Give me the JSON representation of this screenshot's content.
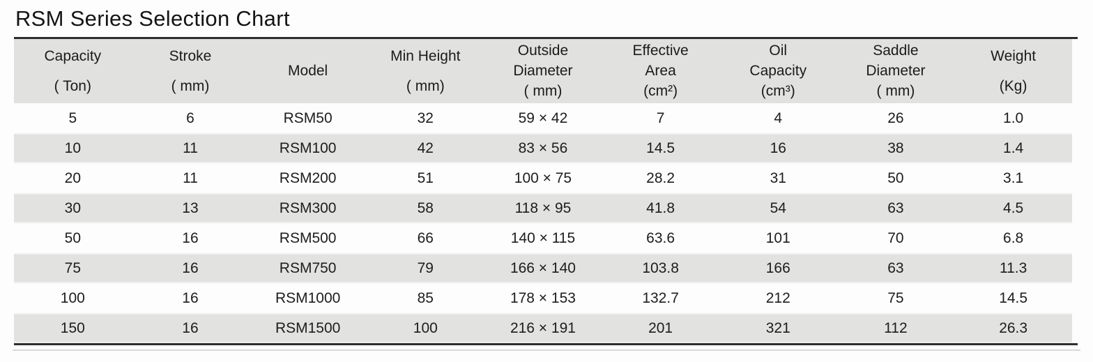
{
  "title": "RSM Series Selection Chart",
  "table": {
    "columns": [
      {
        "id": "capacity",
        "lines": [
          "Capacity",
          "( Ton)"
        ]
      },
      {
        "id": "stroke",
        "lines": [
          "Stroke",
          "( mm)"
        ]
      },
      {
        "id": "model",
        "lines": [
          "Model"
        ]
      },
      {
        "id": "min-height",
        "lines": [
          "Min Height",
          "( mm)"
        ]
      },
      {
        "id": "outside-diameter",
        "lines": [
          "Outside",
          "Diameter",
          "( mm)"
        ]
      },
      {
        "id": "effective-area",
        "lines": [
          "Effective",
          "Area",
          "(cm²)"
        ]
      },
      {
        "id": "oil-capacity",
        "lines": [
          "Oil",
          "Capacity",
          "(cm³)"
        ]
      },
      {
        "id": "saddle-diameter",
        "lines": [
          "Saddle",
          "Diameter",
          "( mm)"
        ]
      },
      {
        "id": "weight",
        "lines": [
          "Weight",
          "(Kg)"
        ]
      }
    ],
    "rows": [
      [
        "5",
        "6",
        "RSM50",
        "32",
        "59 × 42",
        "7",
        "4",
        "26",
        "1.0"
      ],
      [
        "10",
        "11",
        "RSM100",
        "42",
        "83 × 56",
        "14.5",
        "16",
        "38",
        "1.4"
      ],
      [
        "20",
        "11",
        "RSM200",
        "51",
        "100 × 75",
        "28.2",
        "31",
        "50",
        "3.1"
      ],
      [
        "30",
        "13",
        "RSM300",
        "58",
        "118 × 95",
        "41.8",
        "54",
        "63",
        "4.5"
      ],
      [
        "50",
        "16",
        "RSM500",
        "66",
        "140 × 115",
        "63.6",
        "101",
        "70",
        "6.8"
      ],
      [
        "75",
        "16",
        "RSM750",
        "79",
        "166 × 140",
        "103.8",
        "166",
        "63",
        "11.3"
      ],
      [
        "100",
        "16",
        "RSM1000",
        "85",
        "178 × 153",
        "132.7",
        "212",
        "75",
        "14.5"
      ],
      [
        "150",
        "16",
        "RSM1500",
        "100",
        "216 × 191",
        "201",
        "321",
        "112",
        "26.3"
      ]
    ]
  },
  "colors": {
    "header_bg": "#e1e1df",
    "stripe_bg": "#e2e2e0",
    "rule": "#2e2e2e",
    "text": "#1d1d1d",
    "background": "#fdfdfd"
  }
}
